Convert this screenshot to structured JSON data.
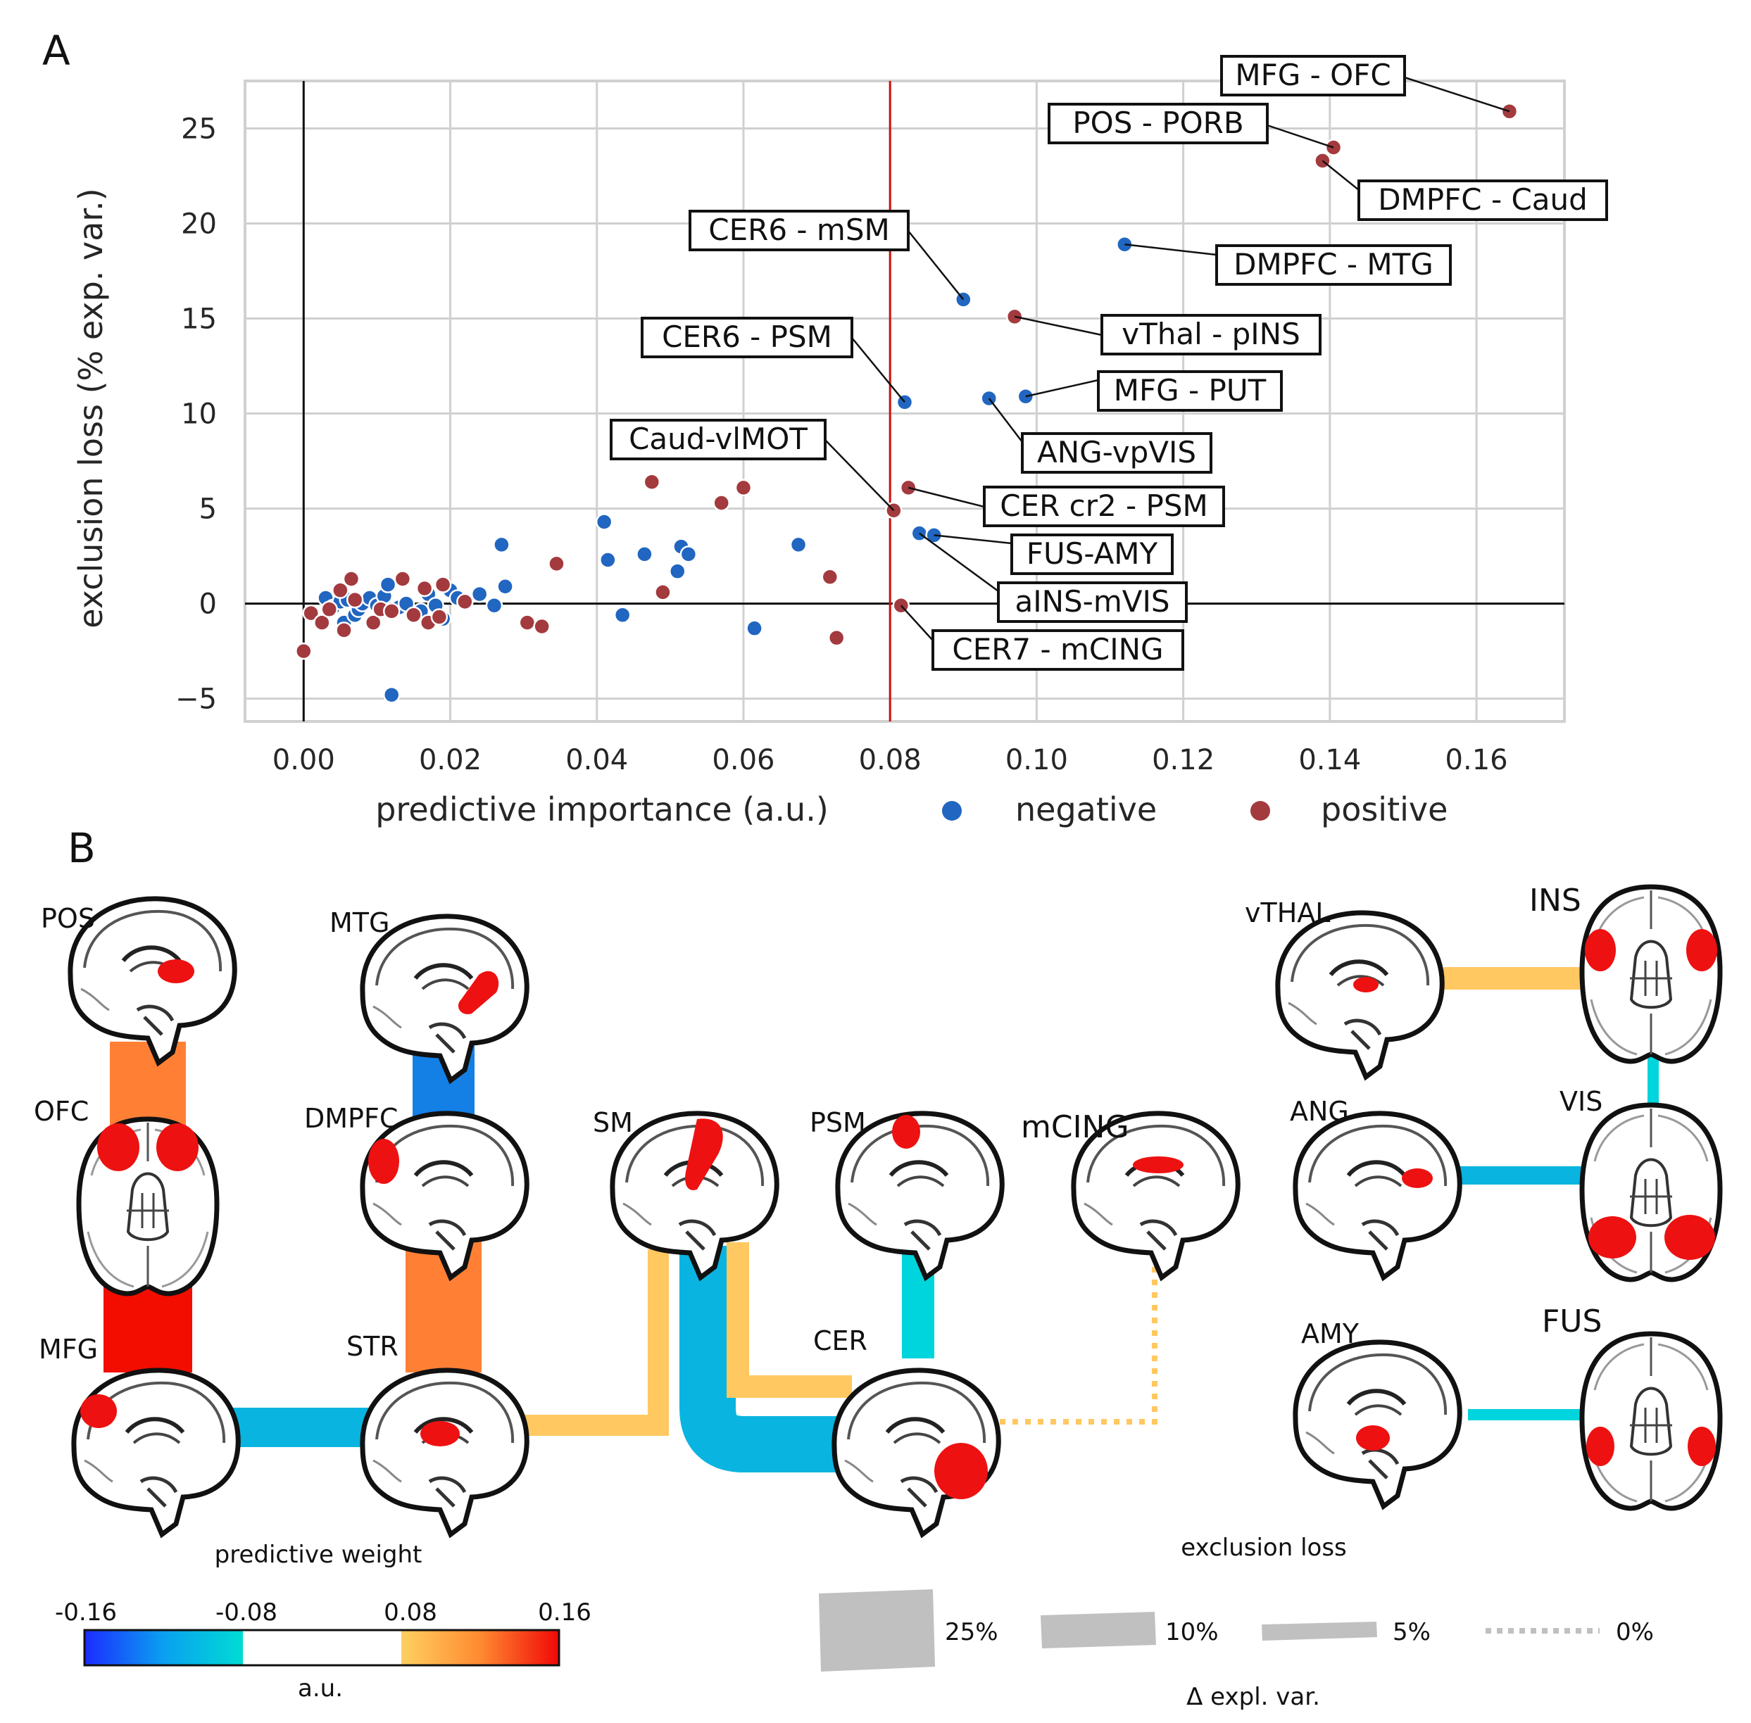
{
  "panels": {
    "a": "A",
    "b": "B"
  },
  "chart_data": {
    "type": "scatter",
    "xlabel": "predictive importance (a.u.)",
    "ylabel": "exclusion loss (% exp. var.)",
    "xlim": [
      -0.008,
      0.172
    ],
    "ylim": [
      -6.2,
      27.5
    ],
    "xticks": [
      0.0,
      0.02,
      0.04,
      0.06,
      0.08,
      0.1,
      0.12,
      0.14,
      0.16
    ],
    "xtick_labels": [
      "0.00",
      "0.02",
      "0.04",
      "0.06",
      "0.08",
      "0.10",
      "0.12",
      "0.14",
      "0.16"
    ],
    "yticks": [
      -5,
      0,
      5,
      10,
      15,
      20,
      25
    ],
    "ytick_labels": [
      "−5",
      "0",
      "5",
      "10",
      "15",
      "20",
      "25"
    ],
    "threshold_x": 0.08,
    "grid": true,
    "legend_position": "bottom-right",
    "series": [
      {
        "name": "negative",
        "color": "#2166c0",
        "points": [
          [
            0.003,
            0.3
          ],
          [
            0.004,
            -0.2
          ],
          [
            0.005,
            0.1
          ],
          [
            0.0055,
            -1.0
          ],
          [
            0.006,
            0.2
          ],
          [
            0.007,
            -0.6
          ],
          [
            0.0075,
            -0.3
          ],
          [
            0.008,
            0.0
          ],
          [
            0.009,
            0.3
          ],
          [
            0.01,
            -0.1
          ],
          [
            0.011,
            0.4
          ],
          [
            0.0115,
            1.0
          ],
          [
            0.012,
            -4.8
          ],
          [
            0.013,
            -0.2
          ],
          [
            0.014,
            0.0
          ],
          [
            0.016,
            -0.4
          ],
          [
            0.017,
            0.5
          ],
          [
            0.018,
            -0.1
          ],
          [
            0.019,
            -0.8
          ],
          [
            0.02,
            0.7
          ],
          [
            0.021,
            0.3
          ],
          [
            0.024,
            0.5
          ],
          [
            0.026,
            -0.1
          ],
          [
            0.027,
            3.1
          ],
          [
            0.0275,
            0.9
          ],
          [
            0.041,
            4.3
          ],
          [
            0.0415,
            2.3
          ],
          [
            0.0435,
            -0.6
          ],
          [
            0.0465,
            2.6
          ],
          [
            0.051,
            1.7
          ],
          [
            0.0515,
            3.0
          ],
          [
            0.0525,
            2.6
          ],
          [
            0.0615,
            -1.3
          ],
          [
            0.0675,
            3.1
          ],
          [
            0.082,
            10.6
          ],
          [
            0.084,
            3.7
          ],
          [
            0.086,
            3.6
          ],
          [
            0.09,
            16.0
          ],
          [
            0.0935,
            10.8
          ],
          [
            0.0985,
            10.9
          ],
          [
            0.112,
            18.9
          ]
        ]
      },
      {
        "name": "positive",
        "color": "#a33a3e",
        "points": [
          [
            0.0,
            -2.5
          ],
          [
            0.001,
            -0.5
          ],
          [
            0.0025,
            -1.0
          ],
          [
            0.0035,
            -0.3
          ],
          [
            0.005,
            0.7
          ],
          [
            0.0055,
            -1.4
          ],
          [
            0.0065,
            1.3
          ],
          [
            0.007,
            0.2
          ],
          [
            0.0095,
            -1.0
          ],
          [
            0.0105,
            -0.3
          ],
          [
            0.012,
            -0.4
          ],
          [
            0.0135,
            1.3
          ],
          [
            0.015,
            -0.6
          ],
          [
            0.0165,
            0.8
          ],
          [
            0.017,
            -1.0
          ],
          [
            0.0185,
            -0.7
          ],
          [
            0.019,
            1.0
          ],
          [
            0.022,
            0.1
          ],
          [
            0.0305,
            -1.0
          ],
          [
            0.0325,
            -1.2
          ],
          [
            0.0345,
            2.1
          ],
          [
            0.0475,
            6.4
          ],
          [
            0.049,
            0.6
          ],
          [
            0.057,
            5.3
          ],
          [
            0.06,
            6.1
          ],
          [
            0.0718,
            1.4
          ],
          [
            0.0727,
            -1.8
          ],
          [
            0.0805,
            4.9
          ],
          [
            0.0815,
            -0.1
          ],
          [
            0.0825,
            6.1
          ],
          [
            0.097,
            15.1
          ],
          [
            0.139,
            23.3
          ],
          [
            0.1405,
            24.0
          ],
          [
            0.1645,
            25.9
          ]
        ]
      }
    ],
    "annotations": [
      {
        "text": "MFG - OFC",
        "point": [
          0.1645,
          25.9
        ]
      },
      {
        "text": "POS - PORB",
        "point": [
          0.1405,
          24.0
        ]
      },
      {
        "text": "DMPFC - Caud",
        "point": [
          0.139,
          23.3
        ]
      },
      {
        "text": "CER6 - mSM",
        "point": [
          0.09,
          16.0
        ]
      },
      {
        "text": "DMPFC - MTG",
        "point": [
          0.112,
          18.9
        ]
      },
      {
        "text": "vThal - pINS",
        "point": [
          0.097,
          15.1
        ]
      },
      {
        "text": "CER6 - PSM",
        "point": [
          0.082,
          10.6
        ]
      },
      {
        "text": "MFG - PUT",
        "point": [
          0.0985,
          10.9
        ]
      },
      {
        "text": "ANG-vpVIS",
        "point": [
          0.0935,
          10.8
        ]
      },
      {
        "text": "Caud-vlMOT",
        "point": [
          0.0805,
          4.9
        ]
      },
      {
        "text": "CER cr2 - PSM",
        "point": [
          0.0825,
          6.1
        ]
      },
      {
        "text": "FUS-AMY",
        "point": [
          0.086,
          3.6
        ]
      },
      {
        "text": "aINS-mVIS",
        "point": [
          0.084,
          3.7
        ]
      },
      {
        "text": "CER7 - mCING",
        "point": [
          0.0815,
          -0.1
        ]
      }
    ]
  },
  "network": {
    "regions": [
      "POS",
      "OFC",
      "MFG",
      "MTG",
      "DMPFC",
      "STR",
      "SM",
      "PSM",
      "CER",
      "mCING",
      "vTHAL",
      "INS",
      "ANG",
      "VIS",
      "AMY",
      "FUS"
    ],
    "edge_colors": {
      "pos_high": "#f20d00",
      "pos_mid": "#ff8035",
      "pos_low": "#ffc860",
      "neg_mid": "#1480e6",
      "neg_low": "#0ab4e0",
      "neg_cyan": "#00d4dc"
    }
  },
  "colorbar": {
    "title": "predictive weight",
    "ticks": [
      "-0.16",
      "-0.08",
      "0.08",
      "0.16"
    ],
    "unit": "a.u."
  },
  "size_legend": {
    "title": "exclusion loss",
    "items": [
      "25%",
      "10%",
      "5%",
      "0%"
    ],
    "unit": "Δ expl. var."
  }
}
